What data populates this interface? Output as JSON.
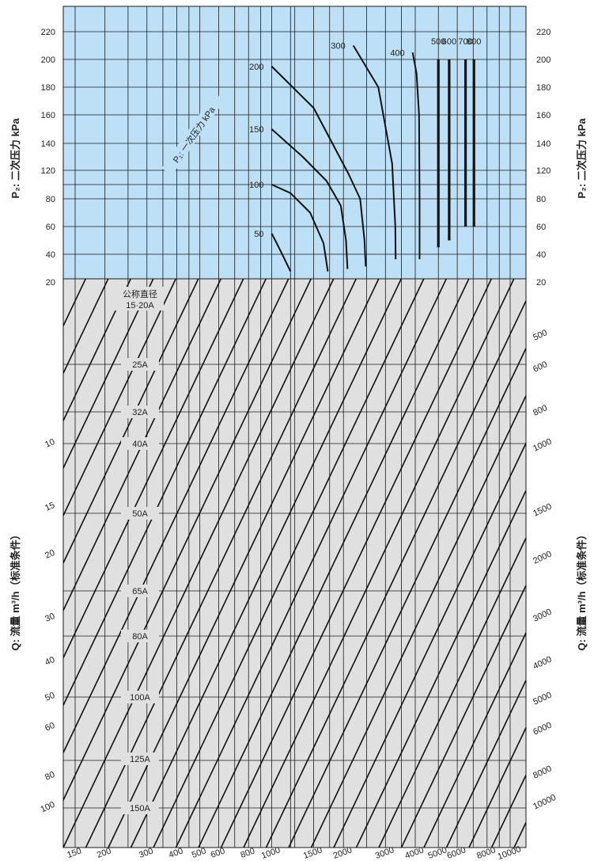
{
  "chart_data": {
    "type": "line",
    "title": "",
    "colors": {
      "upper_bg": "#bde0f7",
      "lower_bg": "#e0e0e0",
      "line": "#111111",
      "grid": "#1a1a1a"
    },
    "ylabel_upper": "P₂: 二次压力 kPa",
    "ylabel_upper_right": "P₂: 二次压力 kPa",
    "ylabel_lower": "Q: 流量 m³/h（标准条件）",
    "ylabel_lower_right": "Q: 流量 m³/h（标准条件）",
    "primary_pressure_label": "P₁: 一次压力 kPa",
    "nominal_diameter_header": "公称直径",
    "p2_ticks": [
      "220",
      "200",
      "180",
      "160",
      "140",
      "120",
      "80",
      "60",
      "40",
      "20"
    ],
    "p2_ticks_right": [
      "220",
      "200",
      "180",
      "160",
      "140",
      "120",
      "80",
      "60",
      "40",
      "20"
    ],
    "left_flow_ticks": [
      "10",
      "15",
      "20",
      "30",
      "40",
      "50",
      "60",
      "80",
      "100"
    ],
    "right_flow_ticks": [
      "500",
      "600",
      "800",
      "1000",
      "1500",
      "2000",
      "3000",
      "4000",
      "5000",
      "6000",
      "8000",
      "10000"
    ],
    "bottom_flow_ticks": [
      "150",
      "200",
      "300",
      "400",
      "500",
      "600",
      "800",
      "1000",
      "1500",
      "2000",
      "3000",
      "4000",
      "5000",
      "6000",
      "8000",
      "10000"
    ],
    "nominal_diameters": [
      "15·20A",
      "25A",
      "32A",
      "40A",
      "50A",
      "65A",
      "80A",
      "100A",
      "125A",
      "150A"
    ],
    "primary_pressure_curves": [
      {
        "name": "50",
        "points": [
          [
            1000,
            55
          ],
          [
            1050,
            48
          ],
          [
            1120,
            38
          ],
          [
            1200,
            26
          ]
        ]
      },
      {
        "name": "100",
        "points": [
          [
            1000,
            100
          ],
          [
            1200,
            88
          ],
          [
            1450,
            70
          ],
          [
            1650,
            48
          ],
          [
            1720,
            26
          ]
        ]
      },
      {
        "name": "150",
        "points": [
          [
            1000,
            150
          ],
          [
            1350,
            130
          ],
          [
            1700,
            105
          ],
          [
            1950,
            75
          ],
          [
            2050,
            50
          ],
          [
            2080,
            28
          ]
        ]
      },
      {
        "name": "200",
        "points": [
          [
            1000,
            195
          ],
          [
            1500,
            165
          ],
          [
            2100,
            115
          ],
          [
            2350,
            80
          ],
          [
            2450,
            50
          ],
          [
            2480,
            30
          ]
        ]
      },
      {
        "name": "300",
        "points": [
          [
            2200,
            210
          ],
          [
            2800,
            180
          ],
          [
            3200,
            125
          ],
          [
            3300,
            60
          ],
          [
            3310,
            36
          ]
        ]
      },
      {
        "name": "400",
        "points": [
          [
            3900,
            205
          ],
          [
            4050,
            190
          ],
          [
            4150,
            160
          ],
          [
            4170,
            80
          ],
          [
            4170,
            36
          ]
        ]
      },
      {
        "name": "500",
        "points": [
          [
            5000,
            200
          ],
          [
            5000,
            45
          ]
        ]
      },
      {
        "name": "600",
        "points": [
          [
            5550,
            200
          ],
          [
            5550,
            50
          ]
        ]
      },
      {
        "name": "700",
        "points": [
          [
            6500,
            200
          ],
          [
            6500,
            60
          ]
        ]
      },
      {
        "name": "800",
        "points": [
          [
            7050,
            200
          ],
          [
            7050,
            60
          ]
        ]
      }
    ],
    "legend": "none",
    "grid": true
  }
}
